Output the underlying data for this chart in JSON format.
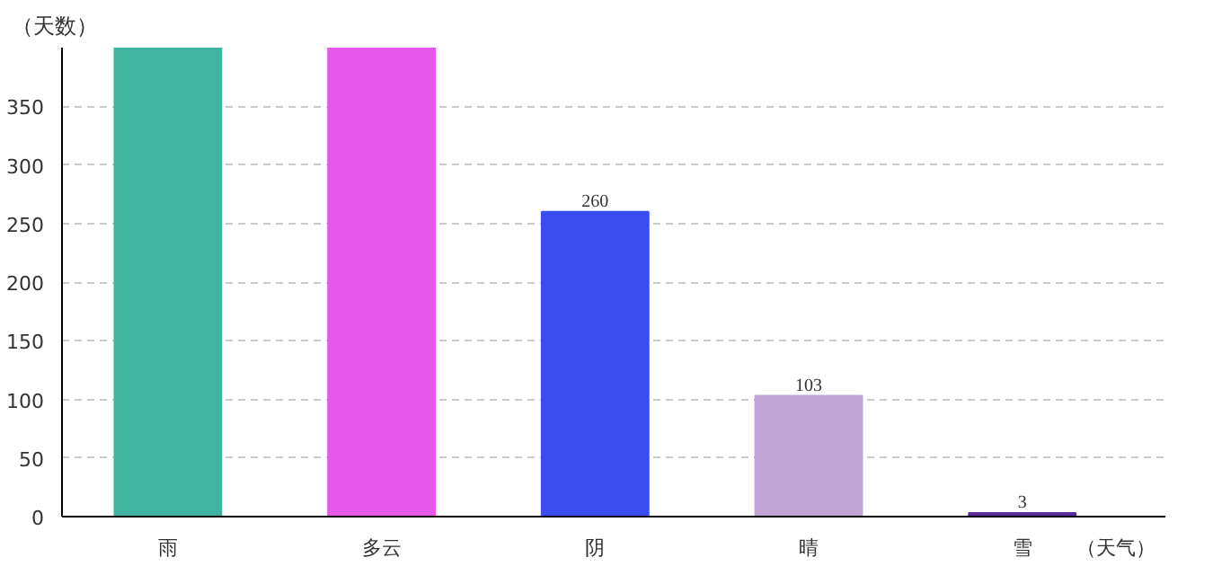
{
  "chart_data": {
    "type": "bar",
    "xlabel": "（天气）",
    "ylabel": "（天数）",
    "categories": [
      "雨",
      "多云",
      "阴",
      "晴",
      "雪"
    ],
    "values": [
      400,
      400,
      260,
      103,
      3
    ],
    "colors": [
      "#40b4a0",
      "#e858e8",
      "#3a4cf0",
      "#c0a4d4",
      "#5a2c9c"
    ],
    "value_labels": [
      null,
      null,
      "260",
      "103",
      "3"
    ],
    "ylim": [
      0,
      400
    ],
    "yticks": [
      0,
      50,
      100,
      150,
      200,
      250,
      300,
      350
    ],
    "grid": "y"
  }
}
